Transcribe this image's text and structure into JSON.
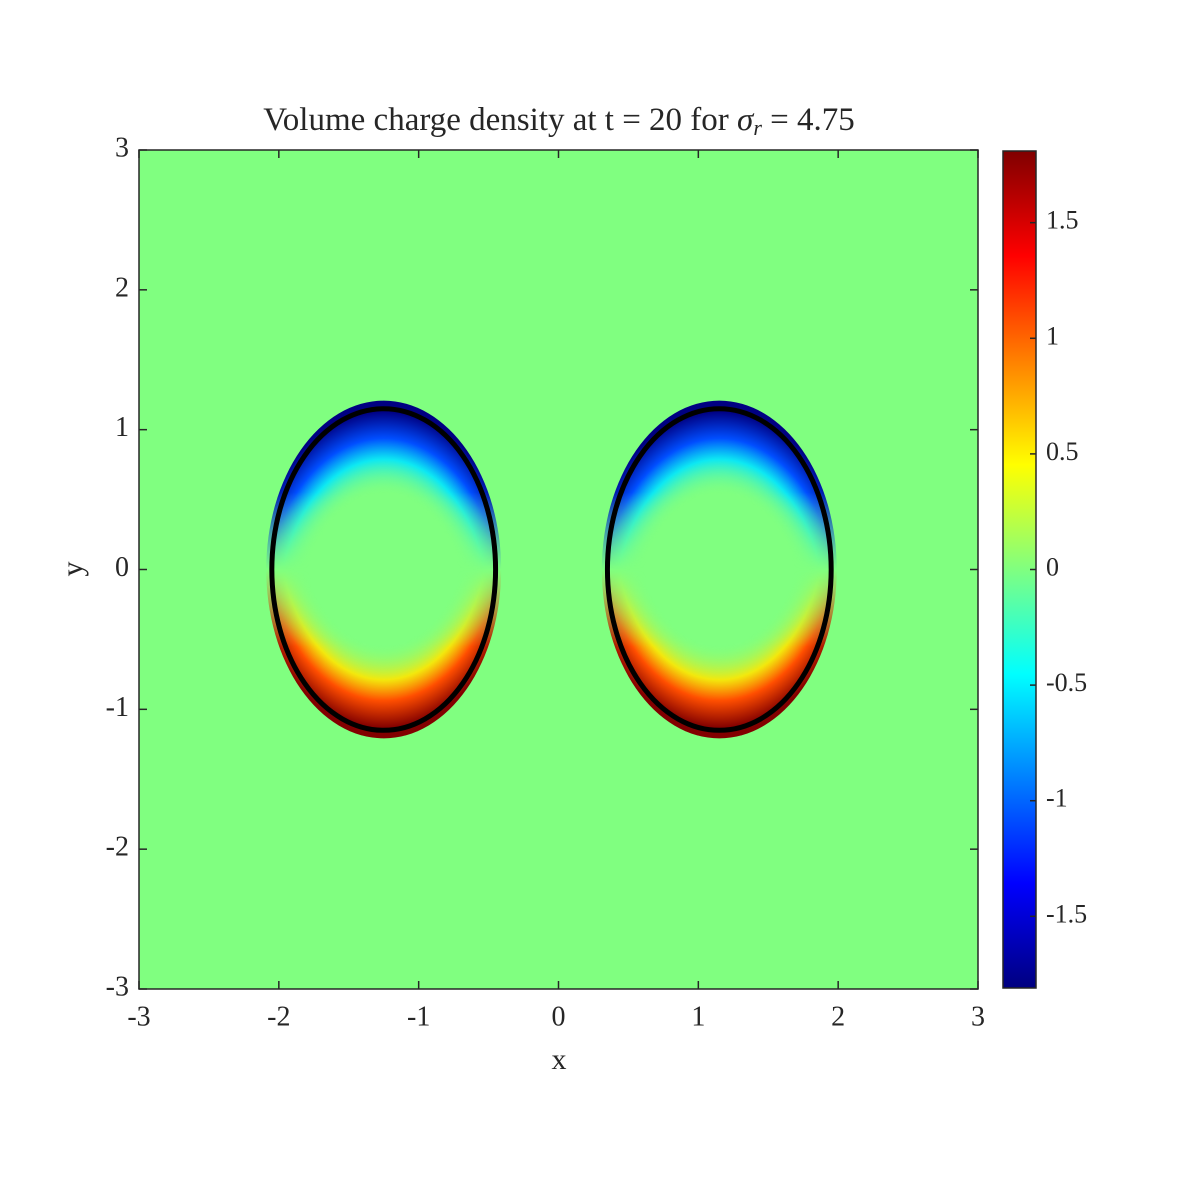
{
  "chart_data": {
    "type": "field",
    "title": {
      "text": "Volume charge density at t = 20 for ",
      "symbol": "σ",
      "subscript": "r",
      "tail": " = 4.75"
    },
    "x_label": "x",
    "y_label": "y",
    "xlim": [
      -3,
      3
    ],
    "ylim": [
      -3,
      3
    ],
    "xticks": [
      -3,
      -2,
      -1,
      0,
      1,
      2,
      3
    ],
    "yticks": [
      -3,
      -2,
      -1,
      0,
      1,
      2,
      3
    ],
    "background": 0,
    "ellipses": [
      {
        "cx": -1.25,
        "cy": 0,
        "rx": 0.8,
        "ry": 1.15,
        "top": -1.8,
        "bottom": 1.8
      },
      {
        "cx": 1.15,
        "cy": 0,
        "rx": 0.8,
        "ry": 1.15,
        "top": -1.8,
        "bottom": 1.8
      }
    ],
    "outline_color": "#000000",
    "colormap": "jet",
    "clim": [
      -1.81,
      1.81
    ],
    "cticks": [
      -1.5,
      -1,
      -0.5,
      0,
      0.5,
      1,
      1.5
    ]
  }
}
